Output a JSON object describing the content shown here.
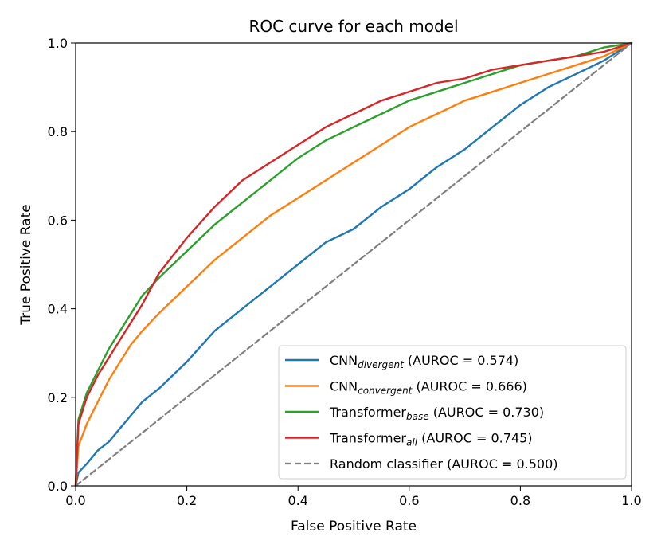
{
  "chart_data": {
    "type": "line",
    "title": "ROC curve for each model",
    "xlabel": "False Positive Rate",
    "ylabel": "True Positive Rate",
    "xlim": [
      0,
      1
    ],
    "ylim": [
      0,
      1
    ],
    "xticks": [
      "0.0",
      "0.2",
      "0.4",
      "0.6",
      "0.8",
      "1.0"
    ],
    "yticks": [
      "0.0",
      "0.2",
      "0.4",
      "0.6",
      "0.8",
      "1.0"
    ],
    "grid": false,
    "legend_position": "bottom-right",
    "series": [
      {
        "name": "CNN",
        "subscript": "divergent",
        "suffix": " (AUROC = 0.574)",
        "color": "#1f77b4",
        "dash": "solid",
        "x": [
          0,
          0.005,
          0.02,
          0.04,
          0.06,
          0.08,
          0.1,
          0.12,
          0.15,
          0.2,
          0.25,
          0.3,
          0.35,
          0.4,
          0.45,
          0.5,
          0.55,
          0.6,
          0.65,
          0.7,
          0.75,
          0.8,
          0.85,
          0.9,
          0.95,
          1.0
        ],
        "y": [
          0,
          0.03,
          0.05,
          0.08,
          0.1,
          0.13,
          0.16,
          0.19,
          0.22,
          0.28,
          0.35,
          0.4,
          0.45,
          0.5,
          0.55,
          0.58,
          0.63,
          0.67,
          0.72,
          0.76,
          0.81,
          0.86,
          0.9,
          0.93,
          0.96,
          1.0
        ]
      },
      {
        "name": "CNN",
        "subscript": "convergent",
        "suffix": " (AUROC = 0.666)",
        "color": "#ff7f0e",
        "dash": "solid",
        "x": [
          0,
          0.005,
          0.02,
          0.04,
          0.06,
          0.08,
          0.1,
          0.12,
          0.15,
          0.2,
          0.25,
          0.3,
          0.35,
          0.4,
          0.45,
          0.5,
          0.55,
          0.6,
          0.65,
          0.7,
          0.75,
          0.8,
          0.85,
          0.9,
          0.95,
          1.0
        ],
        "y": [
          0,
          0.09,
          0.14,
          0.19,
          0.24,
          0.28,
          0.32,
          0.35,
          0.39,
          0.45,
          0.51,
          0.56,
          0.61,
          0.65,
          0.69,
          0.73,
          0.77,
          0.81,
          0.84,
          0.87,
          0.89,
          0.91,
          0.93,
          0.95,
          0.97,
          1.0
        ]
      },
      {
        "name": "Transformer",
        "subscript": "base",
        "suffix": " (AUROC = 0.730)",
        "color": "#2ca02c",
        "dash": "solid",
        "x": [
          0,
          0.005,
          0.02,
          0.04,
          0.06,
          0.08,
          0.1,
          0.12,
          0.15,
          0.2,
          0.25,
          0.3,
          0.35,
          0.4,
          0.45,
          0.5,
          0.55,
          0.6,
          0.65,
          0.7,
          0.75,
          0.8,
          0.85,
          0.9,
          0.95,
          1.0
        ],
        "y": [
          0,
          0.15,
          0.21,
          0.26,
          0.31,
          0.35,
          0.39,
          0.43,
          0.47,
          0.53,
          0.59,
          0.64,
          0.69,
          0.74,
          0.78,
          0.81,
          0.84,
          0.87,
          0.89,
          0.91,
          0.93,
          0.95,
          0.96,
          0.97,
          0.99,
          1.0
        ]
      },
      {
        "name": "Transformer",
        "subscript": "all",
        "suffix": " (AUROC = 0.745)",
        "color": "#d62728",
        "dash": "solid",
        "x": [
          0,
          0.005,
          0.02,
          0.04,
          0.06,
          0.08,
          0.1,
          0.12,
          0.15,
          0.2,
          0.25,
          0.3,
          0.35,
          0.4,
          0.45,
          0.5,
          0.55,
          0.6,
          0.65,
          0.7,
          0.75,
          0.8,
          0.85,
          0.9,
          0.95,
          1.0
        ],
        "y": [
          0,
          0.14,
          0.2,
          0.25,
          0.29,
          0.33,
          0.37,
          0.41,
          0.48,
          0.56,
          0.63,
          0.69,
          0.73,
          0.77,
          0.81,
          0.84,
          0.87,
          0.89,
          0.91,
          0.92,
          0.94,
          0.95,
          0.96,
          0.97,
          0.98,
          1.0
        ]
      },
      {
        "name": "Random classifier",
        "subscript": "",
        "suffix": " (AUROC = 0.500)",
        "color": "#7f7f7f",
        "dash": "dashed",
        "x": [
          0,
          1
        ],
        "y": [
          0,
          1
        ]
      }
    ]
  }
}
